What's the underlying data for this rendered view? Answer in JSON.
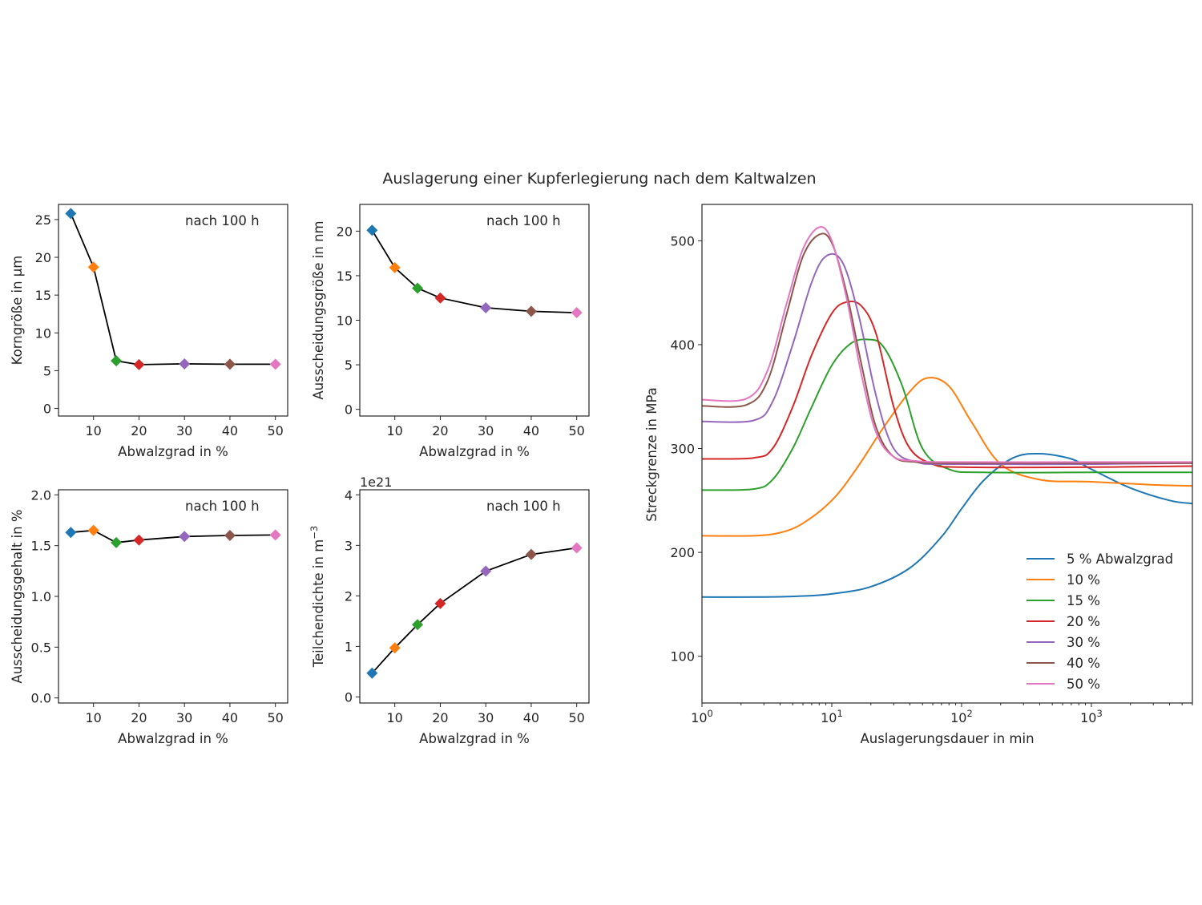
{
  "title": "Auslagerung einer Kupferlegierung nach dem Kaltwalzen",
  "colors": {
    "5": "#1f77b4",
    "10": "#ff7f0e",
    "15": "#2ca02c",
    "20": "#d62728",
    "30": "#9467bd",
    "40": "#8c564b",
    "50": "#e377c2",
    "line": "#000000"
  },
  "chart_data": [
    {
      "type": "line",
      "annotation": "nach 100 h",
      "xlabel": "Abwalzgrad in %",
      "ylabel": "Korngröße in µm",
      "x": [
        5,
        10,
        15,
        20,
        30,
        40,
        50
      ],
      "values": [
        25.8,
        18.7,
        6.3,
        5.8,
        5.9,
        5.85,
        5.85
      ],
      "xlim": [
        2.3,
        52.7
      ],
      "ylim": [
        -1.0,
        27.0
      ],
      "xticks": [
        10,
        20,
        30,
        40,
        50
      ],
      "yticks": [
        0,
        5,
        10,
        15,
        20,
        25
      ],
      "ytick_labels": [
        "0",
        "5",
        "10",
        "15",
        "20",
        "25"
      ]
    },
    {
      "type": "line",
      "annotation": "nach 100 h",
      "xlabel": "Abwalzgrad in %",
      "ylabel": "Ausscheidungsgröße in nm",
      "x": [
        5,
        10,
        15,
        20,
        30,
        40,
        50
      ],
      "values": [
        20.1,
        15.9,
        13.6,
        12.5,
        11.4,
        11.0,
        10.85
      ],
      "xlim": [
        2.3,
        52.7
      ],
      "ylim": [
        -0.75,
        23.0
      ],
      "xticks": [
        10,
        20,
        30,
        40,
        50
      ],
      "yticks": [
        0,
        5,
        10,
        15,
        20
      ],
      "ytick_labels": [
        "0",
        "5",
        "10",
        "15",
        "20"
      ]
    },
    {
      "type": "line",
      "annotation": "nach 100 h",
      "xlabel": "Abwalzgrad in %",
      "ylabel": "Ausscheidungsgehalt in %",
      "x": [
        5,
        10,
        15,
        20,
        30,
        40,
        50
      ],
      "values": [
        1.63,
        1.65,
        1.53,
        1.555,
        1.59,
        1.6,
        1.605
      ],
      "xlim": [
        2.3,
        52.7
      ],
      "ylim": [
        -0.05,
        2.05
      ],
      "xticks": [
        10,
        20,
        30,
        40,
        50
      ],
      "yticks": [
        0,
        0.5,
        1.0,
        1.5,
        2.0
      ],
      "ytick_labels": [
        "0.0",
        "0.5",
        "1.0",
        "1.5",
        "2.0"
      ]
    },
    {
      "type": "line",
      "annotation": "nach 100 h",
      "xlabel": "Abwalzgrad in %",
      "ylabel": "Teilchendichte in m",
      "ylabel_sup": "−3",
      "offset_text": "1e21",
      "x": [
        5,
        10,
        15,
        20,
        30,
        40,
        50
      ],
      "values": [
        0.47,
        0.97,
        1.43,
        1.85,
        2.49,
        2.82,
        2.95
      ],
      "xlim": [
        2.3,
        52.7
      ],
      "ylim": [
        -0.12,
        4.1
      ],
      "xticks": [
        10,
        20,
        30,
        40,
        50
      ],
      "yticks": [
        0,
        1,
        2,
        3,
        4
      ],
      "ytick_labels": [
        "0",
        "1",
        "2",
        "3",
        "4"
      ]
    },
    {
      "type": "line",
      "xscale": "log",
      "xlabel": "Auslagerungsdauer in min",
      "ylabel": "Streckgrenze in MPa",
      "xlim": [
        1,
        6000
      ],
      "ylim": [
        55,
        535
      ],
      "xticks": [
        1,
        10,
        100,
        1000
      ],
      "xtick_base": "10",
      "xtick_exponents": [
        "0",
        "1",
        "2",
        "3"
      ],
      "yticks": [
        100,
        200,
        300,
        400,
        500
      ],
      "ytick_labels": [
        "100",
        "200",
        "300",
        "400",
        "500"
      ],
      "legend_position": "lower-right",
      "series": [
        {
          "name": "5 % Abwalzgrad",
          "color_key": "5",
          "x": [
            1,
            3,
            6,
            10,
            20,
            40,
            70,
            100,
            150,
            250,
            400,
            700,
            1000,
            2000,
            4000,
            6000
          ],
          "values": [
            157,
            157,
            158,
            160,
            167,
            185,
            215,
            242,
            270,
            291,
            295,
            290,
            280,
            262,
            250,
            247
          ]
        },
        {
          "name": "10 %",
          "color_key": "10",
          "x": [
            1,
            2.5,
            4,
            6,
            10,
            15,
            25,
            40,
            55,
            80,
            120,
            200,
            400,
            1000,
            3000,
            6000
          ],
          "values": [
            216,
            216,
            219,
            228,
            250,
            278,
            320,
            355,
            368,
            360,
            325,
            285,
            270,
            268,
            265,
            264
          ]
        },
        {
          "name": "15 %",
          "color_key": "15",
          "x": [
            1,
            2.5,
            3.5,
            5,
            7,
            10,
            14,
            19,
            25,
            35,
            50,
            80,
            150,
            1000,
            6000
          ],
          "values": [
            260,
            261,
            270,
            300,
            340,
            380,
            401,
            405,
            398,
            360,
            300,
            280,
            277,
            277,
            277
          ]
        },
        {
          "name": "20 %",
          "color_key": "20",
          "x": [
            1,
            2.5,
            3.5,
            5,
            7,
            10,
            13,
            17,
            22,
            30,
            40,
            60,
            100,
            1000,
            6000
          ],
          "values": [
            290,
            291,
            300,
            340,
            390,
            430,
            441,
            437,
            410,
            340,
            300,
            285,
            282,
            282,
            283
          ]
        },
        {
          "name": "30 %",
          "color_key": "30",
          "x": [
            1,
            2.5,
            3.5,
            5,
            7,
            9,
            12,
            16,
            22,
            30,
            45,
            80,
            1000,
            6000
          ],
          "values": [
            326,
            327,
            345,
            400,
            460,
            485,
            480,
            430,
            350,
            300,
            287,
            285,
            285,
            286
          ]
        },
        {
          "name": "40 %",
          "color_key": "40",
          "x": [
            1,
            2.2,
            3.2,
            4.5,
            6,
            8,
            10,
            13,
            17,
            22,
            30,
            45,
            80,
            1000,
            6000
          ],
          "values": [
            341,
            342,
            365,
            430,
            485,
            506,
            498,
            450,
            380,
            320,
            292,
            287,
            286,
            286,
            286
          ]
        },
        {
          "name": "50 %",
          "color_key": "50",
          "x": [
            1,
            2.2,
            3.2,
            4.5,
            6,
            8,
            10,
            13,
            17,
            22,
            30,
            45,
            80,
            1000,
            6000
          ],
          "values": [
            347,
            348,
            375,
            440,
            492,
            513,
            500,
            445,
            370,
            315,
            292,
            288,
            287,
            287,
            287
          ]
        }
      ]
    }
  ]
}
